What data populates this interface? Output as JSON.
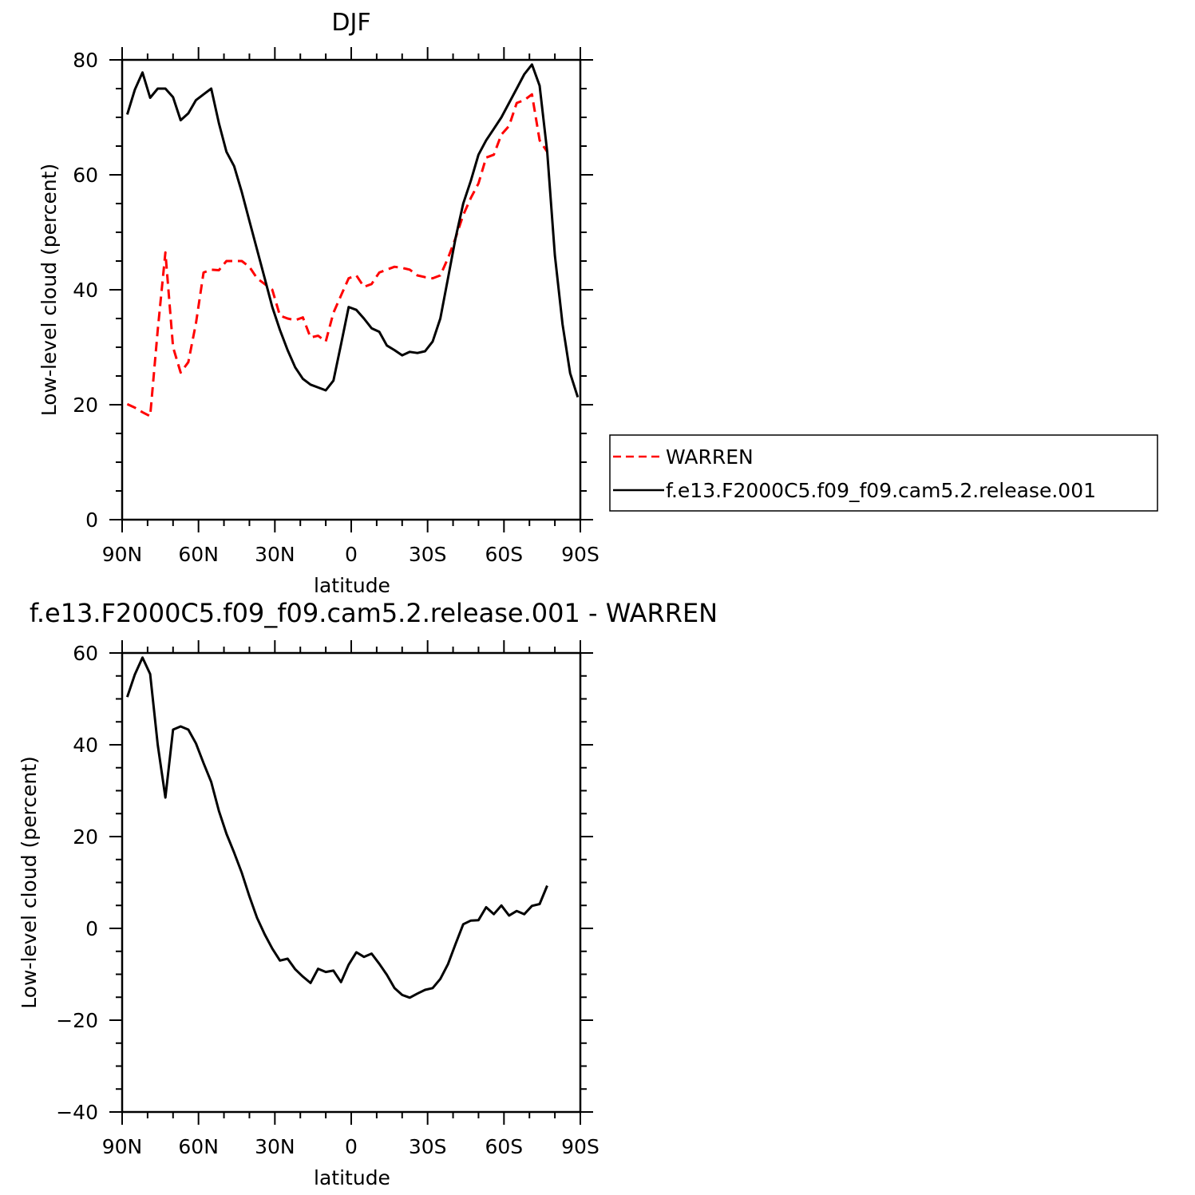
{
  "chart_data": [
    {
      "type": "line",
      "title": "DJF",
      "xlabel": "latitude",
      "ylabel": "Low-level cloud (percent)",
      "xlim": [
        -90,
        90
      ],
      "ylim": [
        0,
        80
      ],
      "yticks": [
        0,
        20,
        40,
        60,
        80
      ],
      "xticks": [
        -90,
        -60,
        -30,
        0,
        30,
        60,
        90
      ],
      "xtick_labels": [
        "90N",
        "60N",
        "30N",
        "0",
        "30S",
        "60S",
        "90S"
      ],
      "legend_placement": "right",
      "series": [
        {
          "name": "WARREN",
          "color": "#ff0000",
          "dash": "dashed",
          "x": [
            -88,
            -85,
            -82,
            -79,
            -76,
            -73,
            -70,
            -67,
            -64,
            -61,
            -58,
            -55,
            -52,
            -49,
            -46,
            -43,
            -40,
            -37,
            -34,
            -31,
            -28,
            -25,
            -22,
            -19,
            -16,
            -13,
            -10,
            -7,
            -4,
            -1,
            2,
            5,
            8,
            11,
            14,
            17,
            20,
            23,
            26,
            29,
            32,
            35,
            38,
            41,
            44,
            47,
            50,
            53,
            56,
            59,
            62,
            65,
            68,
            71,
            74,
            77
          ],
          "y": [
            20.1,
            19.5,
            18.7,
            18.0,
            33,
            46.5,
            30,
            25.6,
            27.4,
            34.2,
            43,
            43.5,
            43.4,
            45,
            45,
            45,
            44,
            42,
            41,
            40,
            35.5,
            35,
            34.7,
            35.2,
            31.7,
            32,
            31,
            36,
            39,
            42,
            42.5,
            40.5,
            41,
            43,
            43.5,
            44,
            43.8,
            43.5,
            42.5,
            42.2,
            42,
            42.5,
            45.5,
            49,
            53,
            56,
            58.5,
            63,
            63.5,
            67,
            68.5,
            72.5,
            73,
            74,
            66,
            64
          ]
        },
        {
          "name": "f.e13.F2000C5.f09_f09.cam5.2.release.001",
          "color": "#000000",
          "dash": "solid",
          "x": [
            -88,
            -85,
            -82,
            -79,
            -76,
            -73,
            -70,
            -67,
            -64,
            -61,
            -58,
            -55,
            -52,
            -49,
            -46,
            -43,
            -40,
            -37,
            -34,
            -31,
            -28,
            -25,
            -22,
            -19,
            -16,
            -13,
            -10,
            -7,
            -4,
            -1,
            2,
            5,
            8,
            11,
            14,
            17,
            20,
            23,
            26,
            29,
            32,
            35,
            38,
            41,
            44,
            47,
            50,
            53,
            56,
            59,
            62,
            65,
            68,
            71,
            74,
            77,
            80,
            83,
            86,
            89
          ],
          "y": [
            70.5,
            74.8,
            77.8,
            73.4,
            75,
            75,
            73.5,
            69.5,
            70.7,
            73,
            74,
            75,
            69,
            64,
            61.5,
            57,
            52,
            47,
            42,
            37,
            33,
            29.5,
            26.5,
            24.5,
            23.5,
            23,
            22.5,
            24.2,
            30.5,
            37,
            36.5,
            35,
            33.3,
            32.7,
            30.3,
            29.5,
            28.6,
            29.2,
            29,
            29.3,
            31,
            35,
            42,
            49,
            55,
            59,
            63.5,
            66,
            68,
            70,
            72.5,
            75,
            77.5,
            79.2,
            75.5,
            64,
            46,
            34,
            25.5,
            21.3
          ]
        }
      ]
    },
    {
      "type": "line",
      "title": "f.e13.F2000C5.f09_f09.cam5.2.release.001 - WARREN",
      "xlabel": "latitude",
      "ylabel": "Low-level cloud (percent)",
      "xlim": [
        -90,
        90
      ],
      "ylim": [
        -40,
        60
      ],
      "yticks": [
        -40,
        -20,
        0,
        20,
        40,
        60
      ],
      "xticks": [
        -90,
        -60,
        -30,
        0,
        30,
        60,
        90
      ],
      "xtick_labels": [
        "90N",
        "60N",
        "30N",
        "0",
        "30S",
        "60S",
        "90S"
      ],
      "series": [
        {
          "color": "#000000",
          "dash": "solid",
          "x": [
            -88,
            -85,
            -82,
            -79,
            -76,
            -73,
            -70,
            -67,
            -64,
            -61,
            -58,
            -55,
            -52,
            -49,
            -46,
            -43,
            -40,
            -37,
            -34,
            -31,
            -28,
            -25,
            -22,
            -19,
            -16,
            -13,
            -10,
            -7,
            -4,
            -1,
            2,
            5,
            8,
            11,
            14,
            17,
            20,
            23,
            26,
            29,
            32,
            35,
            38,
            41,
            44,
            47,
            50,
            53,
            56,
            59,
            62,
            65,
            68,
            71,
            74,
            77
          ],
          "y": [
            50.4,
            55.3,
            59,
            55.4,
            40,
            28.5,
            43.3,
            44,
            43.3,
            40.3,
            36,
            31.9,
            25.6,
            20.6,
            16.5,
            12.1,
            7,
            2.3,
            -1.3,
            -4.4,
            -7,
            -6.6,
            -8.9,
            -10.5,
            -11.9,
            -8.8,
            -9.5,
            -9.2,
            -11.7,
            -7.9,
            -5.2,
            -6.2,
            -5.5,
            -7.7,
            -10.1,
            -13,
            -14.5,
            -15.1,
            -14.2,
            -13.4,
            -13,
            -11,
            -7.8,
            -3.4,
            0.9,
            1.7,
            1.8,
            4.6,
            3.1,
            5,
            2.8,
            3.8,
            3.1,
            4.9,
            5.3,
            9.3
          ]
        }
      ]
    }
  ],
  "legend": {
    "entries": [
      "WARREN",
      "f.e13.F2000C5.f09_f09.cam5.2.release.001"
    ]
  }
}
